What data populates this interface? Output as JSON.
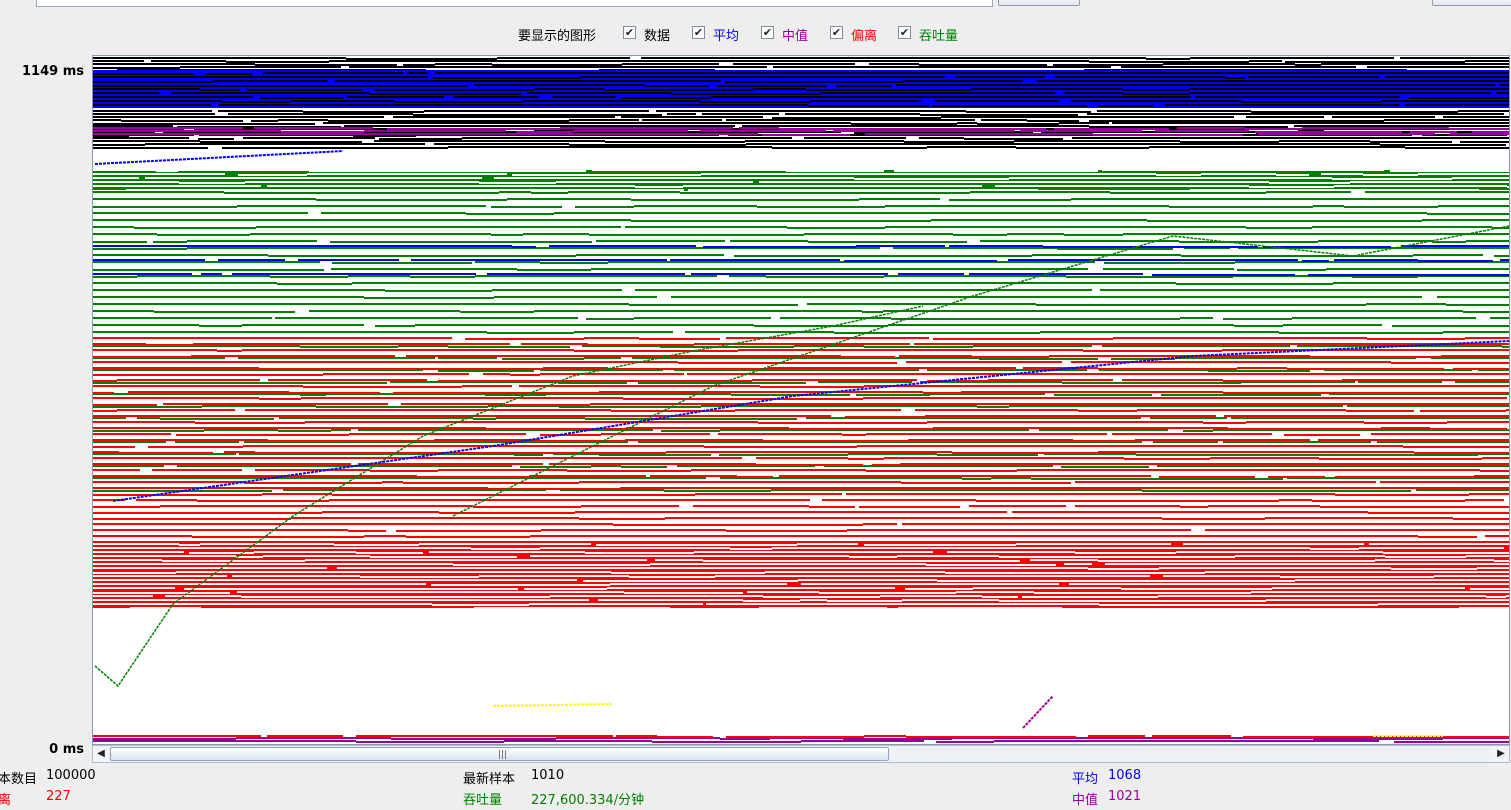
{
  "legend": {
    "prompt": "要显示的图形",
    "items": [
      {
        "label": "数据",
        "color": "#000000",
        "checked": true
      },
      {
        "label": "平均",
        "color": "#0000ff",
        "checked": true
      },
      {
        "label": "中值",
        "color": "#990099",
        "checked": true
      },
      {
        "label": "偏离",
        "color": "#ff0000",
        "checked": true
      },
      {
        "label": "吞吐量",
        "color": "#008000",
        "checked": true
      }
    ],
    "check_glyph": "✔"
  },
  "y_axis": {
    "max_label": "1149  ms",
    "min_label": "0  ms"
  },
  "scrollbar": {
    "left_arrow": "◀",
    "right_arrow": "▶",
    "grip": "|||"
  },
  "stats": {
    "sample_count_label": "本数目",
    "sample_count_value": "100000",
    "deviation_label": "离",
    "deviation_value": "227",
    "latest_sample_label": "最新样本",
    "latest_sample_value": "1010",
    "throughput_label": "吞吐量",
    "throughput_value": "227,600.334/分钟",
    "average_label": "平均",
    "average_value": "1068",
    "median_label": "中值",
    "median_value": "1021"
  },
  "colors": {
    "data": "#000000",
    "average": "#0000ff",
    "median": "#990099",
    "deviation": "#ff0000",
    "throughput": "#008000",
    "yellow": "#ffff00"
  }
}
